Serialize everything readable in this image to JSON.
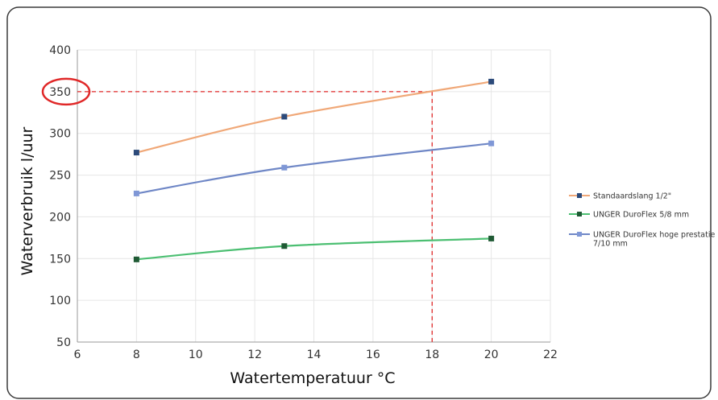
{
  "chart_data": {
    "type": "line",
    "xlabel": "Watertemperatuur  °C",
    "ylabel": "Waterverbruik l/uur",
    "xlim": [
      6,
      22
    ],
    "ylim": [
      50,
      400
    ],
    "xticks": [
      6,
      8,
      10,
      12,
      14,
      16,
      18,
      20,
      22
    ],
    "yticks": [
      50,
      100,
      150,
      200,
      250,
      300,
      350,
      400
    ],
    "grid": true,
    "legend_position": "right",
    "series": [
      {
        "name": "Standaardslang 1/2\"",
        "line_color": "#f0a878",
        "marker_color": "#2c4a7a",
        "x": [
          8,
          13,
          20
        ],
        "y": [
          277,
          320,
          362
        ]
      },
      {
        "name": "UNGER DuroFlex 5/8 mm",
        "line_color": "#4cbf72",
        "marker_color": "#1f5a34",
        "x": [
          8,
          13,
          20
        ],
        "y": [
          149,
          165,
          174
        ]
      },
      {
        "name": "UNGER DuroFlex hoge prestatie 7/10 mm",
        "line_color": "#6f87c6",
        "marker_color": "#7f97d6",
        "x": [
          8,
          13,
          20
        ],
        "y": [
          228,
          259,
          288
        ]
      }
    ],
    "annotation": {
      "highlight_y": 350,
      "guide_x": 18,
      "color": "#e02828"
    }
  }
}
